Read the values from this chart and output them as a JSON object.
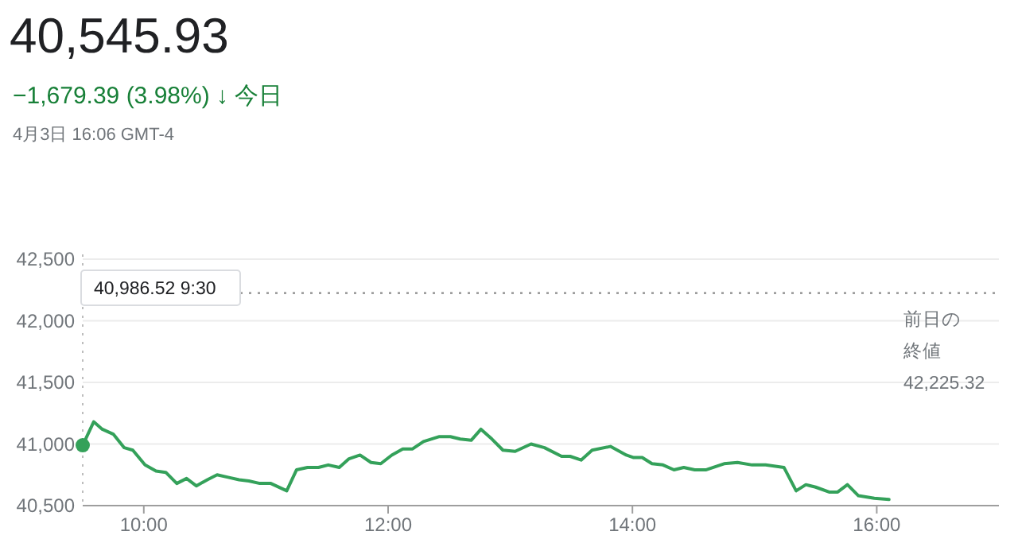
{
  "chart_data": {
    "type": "line",
    "title": "40,545.93",
    "subtitle": "−1,679.39 (3.98%) ↓ 今日",
    "annotations": [
      "4月3日 16:06 GMT-4",
      "40,986.52 9:30"
    ],
    "x": [
      9.5,
      9.59,
      9.66,
      9.75,
      9.84,
      9.91,
      10.01,
      10.1,
      10.18,
      10.27,
      10.35,
      10.43,
      10.52,
      10.6,
      10.69,
      10.78,
      10.86,
      10.95,
      11.04,
      11.17,
      11.25,
      11.34,
      11.43,
      11.51,
      11.6,
      11.68,
      11.77,
      11.86,
      11.94,
      12.03,
      12.12,
      12.2,
      12.29,
      12.42,
      12.51,
      12.59,
      12.68,
      12.76,
      12.85,
      12.94,
      13.04,
      13.17,
      13.28,
      13.42,
      13.49,
      13.58,
      13.67,
      13.82,
      13.95,
      14.01,
      14.08,
      14.16,
      14.25,
      14.34,
      14.42,
      14.51,
      14.6,
      14.75,
      14.86,
      14.98,
      15.09,
      15.24,
      15.34,
      15.42,
      15.5,
      15.61,
      15.68,
      15.76,
      15.85,
      15.98,
      16.1
    ],
    "series": [
      {
        "color": "#34a15a",
        "values": [
          40990,
          41180,
          41120,
          41080,
          40970,
          40950,
          40830,
          40780,
          40770,
          40680,
          40720,
          40660,
          40710,
          40750,
          40730,
          40710,
          40700,
          40680,
          40680,
          40620,
          40790,
          40810,
          40810,
          40830,
          40810,
          40880,
          40910,
          40850,
          40840,
          40910,
          40960,
          40960,
          41020,
          41060,
          41060,
          41040,
          41030,
          41120,
          41040,
          40950,
          40940,
          41000,
          40970,
          40900,
          40900,
          40870,
          40950,
          40980,
          40910,
          40890,
          40890,
          40840,
          40830,
          40790,
          40810,
          40790,
          40790,
          40840,
          40850,
          40830,
          40830,
          40810,
          40620,
          40670,
          40650,
          40610,
          40610,
          40670,
          40580,
          40560,
          40550
        ]
      }
    ],
    "xlim": [
      9.5,
      17
    ],
    "ylim": [
      40500,
      42500
    ],
    "xticks": [
      {
        "value": 10,
        "label": "10:00"
      },
      {
        "value": 12,
        "label": "12:00"
      },
      {
        "value": 14,
        "label": "14:00"
      },
      {
        "value": 16,
        "label": "16:00"
      }
    ],
    "yticks": [
      {
        "value": 40500,
        "label": "40,500"
      },
      {
        "value": 41000,
        "label": "41,000"
      },
      {
        "value": 41500,
        "label": "41,500"
      },
      {
        "value": 42000,
        "label": "42,000"
      },
      {
        "value": 42500,
        "label": "42,500"
      }
    ],
    "grid": "y",
    "marker": "none",
    "line_style": "solid",
    "ref_lines": [
      {
        "axis": "y",
        "value": 42225.32,
        "label": "前日の終値\n42,225.32",
        "line_style": "dotted",
        "color": "#9e9e9e"
      },
      {
        "axis": "x",
        "value": 9.5,
        "line_style": "dotted",
        "color": "#bdbdbd"
      }
    ]
  }
}
